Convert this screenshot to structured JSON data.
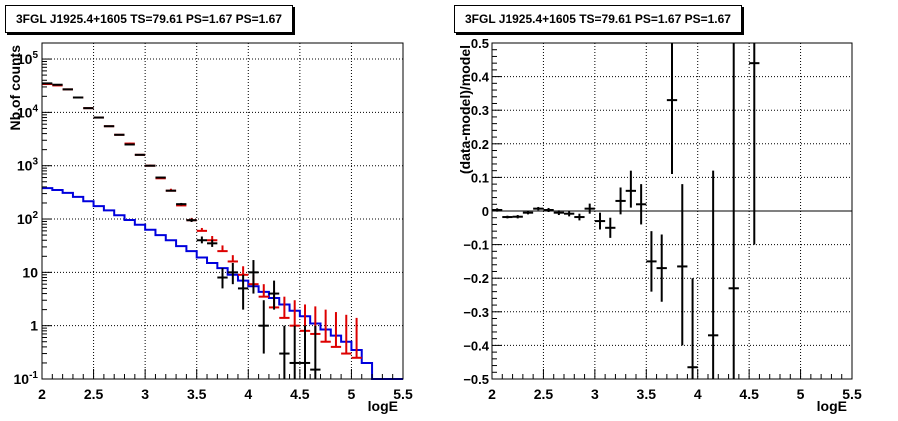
{
  "chart_data": [
    {
      "type": "scatter",
      "title": "3FGL J1925.4+1605 TS=79.61 PS=1.67 PS=1.67",
      "xlabel": "logE",
      "ylabel": "Nb of counts",
      "xlim": [
        2,
        5.5
      ],
      "ylim": [
        0.1,
        200000
      ],
      "yscale": "log",
      "grid": true,
      "x_ticks": [
        "2",
        "2.5",
        "3",
        "3.5",
        "4",
        "4.5",
        "5",
        "5.5"
      ],
      "y_ticks": [
        "10^{-1}",
        "1",
        "10",
        "10^{2}",
        "10^{3}",
        "10^{4}",
        "10^{5}"
      ],
      "colors": {
        "data": "#000000",
        "model": "#dd0000",
        "source": "#0000dd"
      },
      "bin_width": 0.1,
      "data": {
        "x": [
          2.05,
          2.15,
          2.25,
          2.35,
          2.45,
          2.55,
          2.65,
          2.75,
          2.85,
          2.95,
          3.05,
          3.15,
          3.25,
          3.35,
          3.45,
          3.55,
          3.65,
          3.75,
          3.85,
          3.95,
          4.05,
          4.15,
          4.25,
          4.35,
          4.45,
          4.55,
          4.65
        ],
        "y": [
          35000,
          33000,
          27000,
          19000,
          12000,
          8000,
          5500,
          3800,
          2500,
          1600,
          1000,
          600,
          340,
          190,
          95,
          40,
          35,
          8,
          10,
          5,
          10,
          1,
          4,
          0.3,
          0.2,
          0.2,
          0.15
        ],
        "ylo": [
          34500,
          32500,
          26600,
          18700,
          11800,
          7900,
          5400,
          3700,
          2450,
          1570,
          980,
          590,
          330,
          180,
          88,
          35,
          30,
          5,
          6,
          2,
          4,
          0.3,
          2,
          0.1,
          0.1,
          0.1,
          0.1
        ],
        "yhi": [
          35500,
          33500,
          27400,
          19300,
          12200,
          8100,
          5600,
          3900,
          2550,
          1630,
          1020,
          610,
          350,
          200,
          102,
          47,
          41,
          12,
          15,
          9,
          17,
          3,
          7,
          1,
          1,
          1,
          1
        ]
      },
      "model": {
        "x": [
          2.05,
          2.15,
          2.25,
          2.35,
          2.45,
          2.55,
          2.65,
          2.75,
          2.85,
          2.95,
          3.05,
          3.15,
          3.25,
          3.35,
          3.45,
          3.55,
          3.65,
          3.75,
          3.85,
          3.95,
          4.05,
          4.15,
          4.25,
          4.35,
          4.45,
          4.55,
          4.65,
          4.75,
          4.85,
          4.95,
          5.05
        ],
        "y": [
          34000,
          32000,
          27000,
          19000,
          12000,
          8000,
          5500,
          3800,
          2600,
          1600,
          1000,
          580,
          340,
          180,
          95,
          60,
          40,
          25,
          16,
          9,
          6,
          3.5,
          2.2,
          1.4,
          1.0,
          0.8,
          0.7,
          0.5,
          0.4,
          0.3,
          0.25
        ],
        "yhi": [
          34300,
          32300,
          27300,
          19200,
          12200,
          8100,
          5600,
          3900,
          2700,
          1650,
          1050,
          620,
          370,
          200,
          105,
          68,
          48,
          32,
          21,
          13,
          9,
          6,
          4.5,
          3.5,
          3,
          2.5,
          2.3,
          2,
          1.8,
          1.6,
          1.4
        ]
      },
      "source": {
        "edges": [
          2.0,
          2.1,
          2.2,
          2.3,
          2.4,
          2.5,
          2.6,
          2.7,
          2.8,
          2.9,
          3.0,
          3.1,
          3.2,
          3.3,
          3.4,
          3.5,
          3.6,
          3.7,
          3.8,
          3.9,
          4.0,
          4.1,
          4.2,
          4.3,
          4.4,
          4.5,
          4.6,
          4.7,
          4.8,
          4.9,
          5.0,
          5.1,
          5.2,
          5.3,
          5.4,
          5.5
        ],
        "y": [
          380,
          350,
          310,
          260,
          215,
          175,
          145,
          118,
          96,
          78,
          63,
          50,
          40,
          31,
          25,
          19,
          15,
          12,
          9,
          7,
          5.5,
          4.3,
          3.3,
          2.5,
          1.9,
          1.5,
          1.1,
          0.85,
          0.65,
          0.5,
          0.35,
          0.2,
          0.1,
          0.1,
          0.1
        ]
      }
    },
    {
      "type": "scatter",
      "title": "3FGL J1925.4+1605 TS=79.61 PS=1.67 PS=1.67",
      "xlabel": "logE",
      "ylabel": "(data-model)/model",
      "xlim": [
        2,
        5.5
      ],
      "ylim": [
        -0.5,
        0.5
      ],
      "grid": true,
      "x_ticks": [
        "2",
        "2.5",
        "3",
        "3.5",
        "4",
        "4.5",
        "5",
        "5.5"
      ],
      "y_ticks": [
        "−0.5",
        "−0.4",
        "−0.3",
        "−0.2",
        "−0.1",
        "0",
        "0.1",
        "0.2",
        "0.3",
        "0.4",
        "0.5"
      ],
      "color": "#000000",
      "bin_width": 0.1,
      "x": [
        2.05,
        2.15,
        2.25,
        2.35,
        2.45,
        2.55,
        2.65,
        2.75,
        2.85,
        2.95,
        3.05,
        3.15,
        3.25,
        3.35,
        3.45,
        3.55,
        3.65,
        3.75,
        3.85,
        3.95,
        4.15,
        4.35,
        4.55
      ],
      "y": [
        0.003,
        -0.018,
        -0.017,
        -0.005,
        0.007,
        0.003,
        -0.005,
        -0.008,
        -0.018,
        0.007,
        -0.03,
        -0.05,
        0.03,
        0.06,
        0.02,
        -0.15,
        -0.17,
        0.33,
        -0.165,
        -0.465,
        -0.37,
        -0.23,
        0.44
      ],
      "ylo": [
        -0.002,
        -0.022,
        -0.022,
        -0.01,
        0.002,
        -0.003,
        -0.012,
        -0.016,
        -0.028,
        -0.008,
        -0.055,
        -0.08,
        -0.01,
        0.01,
        -0.04,
        -0.24,
        -0.27,
        0.11,
        -0.4,
        -0.5,
        -0.5,
        -0.5,
        -0.1
      ],
      "yhi": [
        0.008,
        -0.014,
        -0.012,
        0.0,
        0.012,
        0.009,
        0.002,
        0.0,
        -0.008,
        0.022,
        -0.005,
        -0.02,
        0.07,
        0.12,
        0.08,
        -0.06,
        -0.07,
        0.5,
        0.08,
        -0.2,
        0.12,
        0.5,
        0.5
      ]
    }
  ]
}
